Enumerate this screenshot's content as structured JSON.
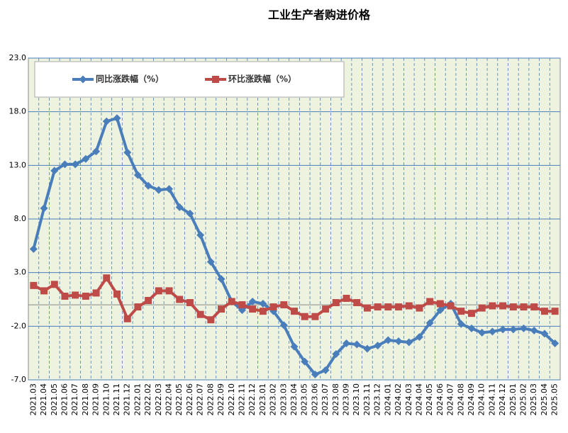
{
  "chart_data": {
    "type": "line",
    "title": "工业生产者购进价格",
    "categories": [
      "2021.03",
      "2021.04",
      "2021.05",
      "2021.06",
      "2021.07",
      "2021.08",
      "2021.09",
      "2021.10",
      "2021.11",
      "2021.12",
      "2022.01",
      "2022.02",
      "2022.03",
      "2022.04",
      "2022.05",
      "2022.06",
      "2022.07",
      "2022.08",
      "2022.09",
      "2022.10",
      "2022.11",
      "2022.12",
      "2023.01",
      "2023.02",
      "2023.03",
      "2023.04",
      "2023.05",
      "2023.06",
      "2023.07",
      "2023.08",
      "2023.09",
      "2023.10",
      "2023.11",
      "2023.12",
      "2024.01",
      "2024.02",
      "2024.03",
      "2024.04",
      "2024.05",
      "2024.06",
      "2024.07",
      "2024.08",
      "2024.09",
      "2024.10",
      "2024.11",
      "2024.12",
      "2025.01",
      "2025.02",
      "2025.03",
      "2025.04",
      "2025.05"
    ],
    "series": [
      {
        "name": "同比涨跌幅（%）",
        "color": "#4a7ebb",
        "marker": "diamond",
        "values": [
          5.2,
          9.0,
          12.5,
          13.1,
          13.1,
          13.6,
          14.3,
          17.1,
          17.4,
          14.2,
          12.1,
          11.1,
          10.7,
          10.8,
          9.1,
          8.5,
          6.5,
          4.0,
          2.4,
          0.3,
          -0.5,
          0.3,
          0.1,
          -0.6,
          -1.9,
          -3.9,
          -5.3,
          -6.5,
          -6.1,
          -4.6,
          -3.6,
          -3.7,
          -4.1,
          -3.8,
          -3.3,
          -3.4,
          -3.5,
          -3.0,
          -1.7,
          -0.5,
          0.1,
          -1.8,
          -2.2,
          -2.6,
          -2.5,
          -2.3,
          -2.3,
          -2.2,
          -2.4,
          -2.7,
          -3.6
        ]
      },
      {
        "name": "环比涨跌幅（%）",
        "color": "#be4b48",
        "marker": "square",
        "values": [
          1.8,
          1.3,
          1.9,
          0.8,
          0.9,
          0.8,
          1.1,
          2.5,
          1.0,
          -1.3,
          -0.2,
          0.4,
          1.3,
          1.3,
          0.5,
          0.2,
          -0.9,
          -1.4,
          -0.4,
          0.3,
          0.0,
          -0.4,
          -0.6,
          -0.2,
          0.0,
          -0.6,
          -1.1,
          -1.1,
          -0.4,
          0.2,
          0.6,
          0.2,
          -0.3,
          -0.2,
          -0.2,
          -0.2,
          -0.1,
          -0.3,
          0.3,
          0.1,
          -0.1,
          -0.6,
          -0.8,
          -0.3,
          -0.1,
          -0.1,
          -0.2,
          -0.2,
          -0.2,
          -0.6,
          -0.6
        ]
      }
    ],
    "ylim": [
      -7,
      23
    ],
    "yticks": [
      {
        "value": -7,
        "label": "-7.0"
      },
      {
        "value": -2,
        "label": "-2.0"
      },
      {
        "value": 3,
        "label": "3.0"
      },
      {
        "value": 8,
        "label": "8.0"
      },
      {
        "value": 13,
        "label": "13.0"
      },
      {
        "value": 18,
        "label": "18.0"
      },
      {
        "value": 23,
        "label": "23.0"
      }
    ],
    "grid": true
  }
}
